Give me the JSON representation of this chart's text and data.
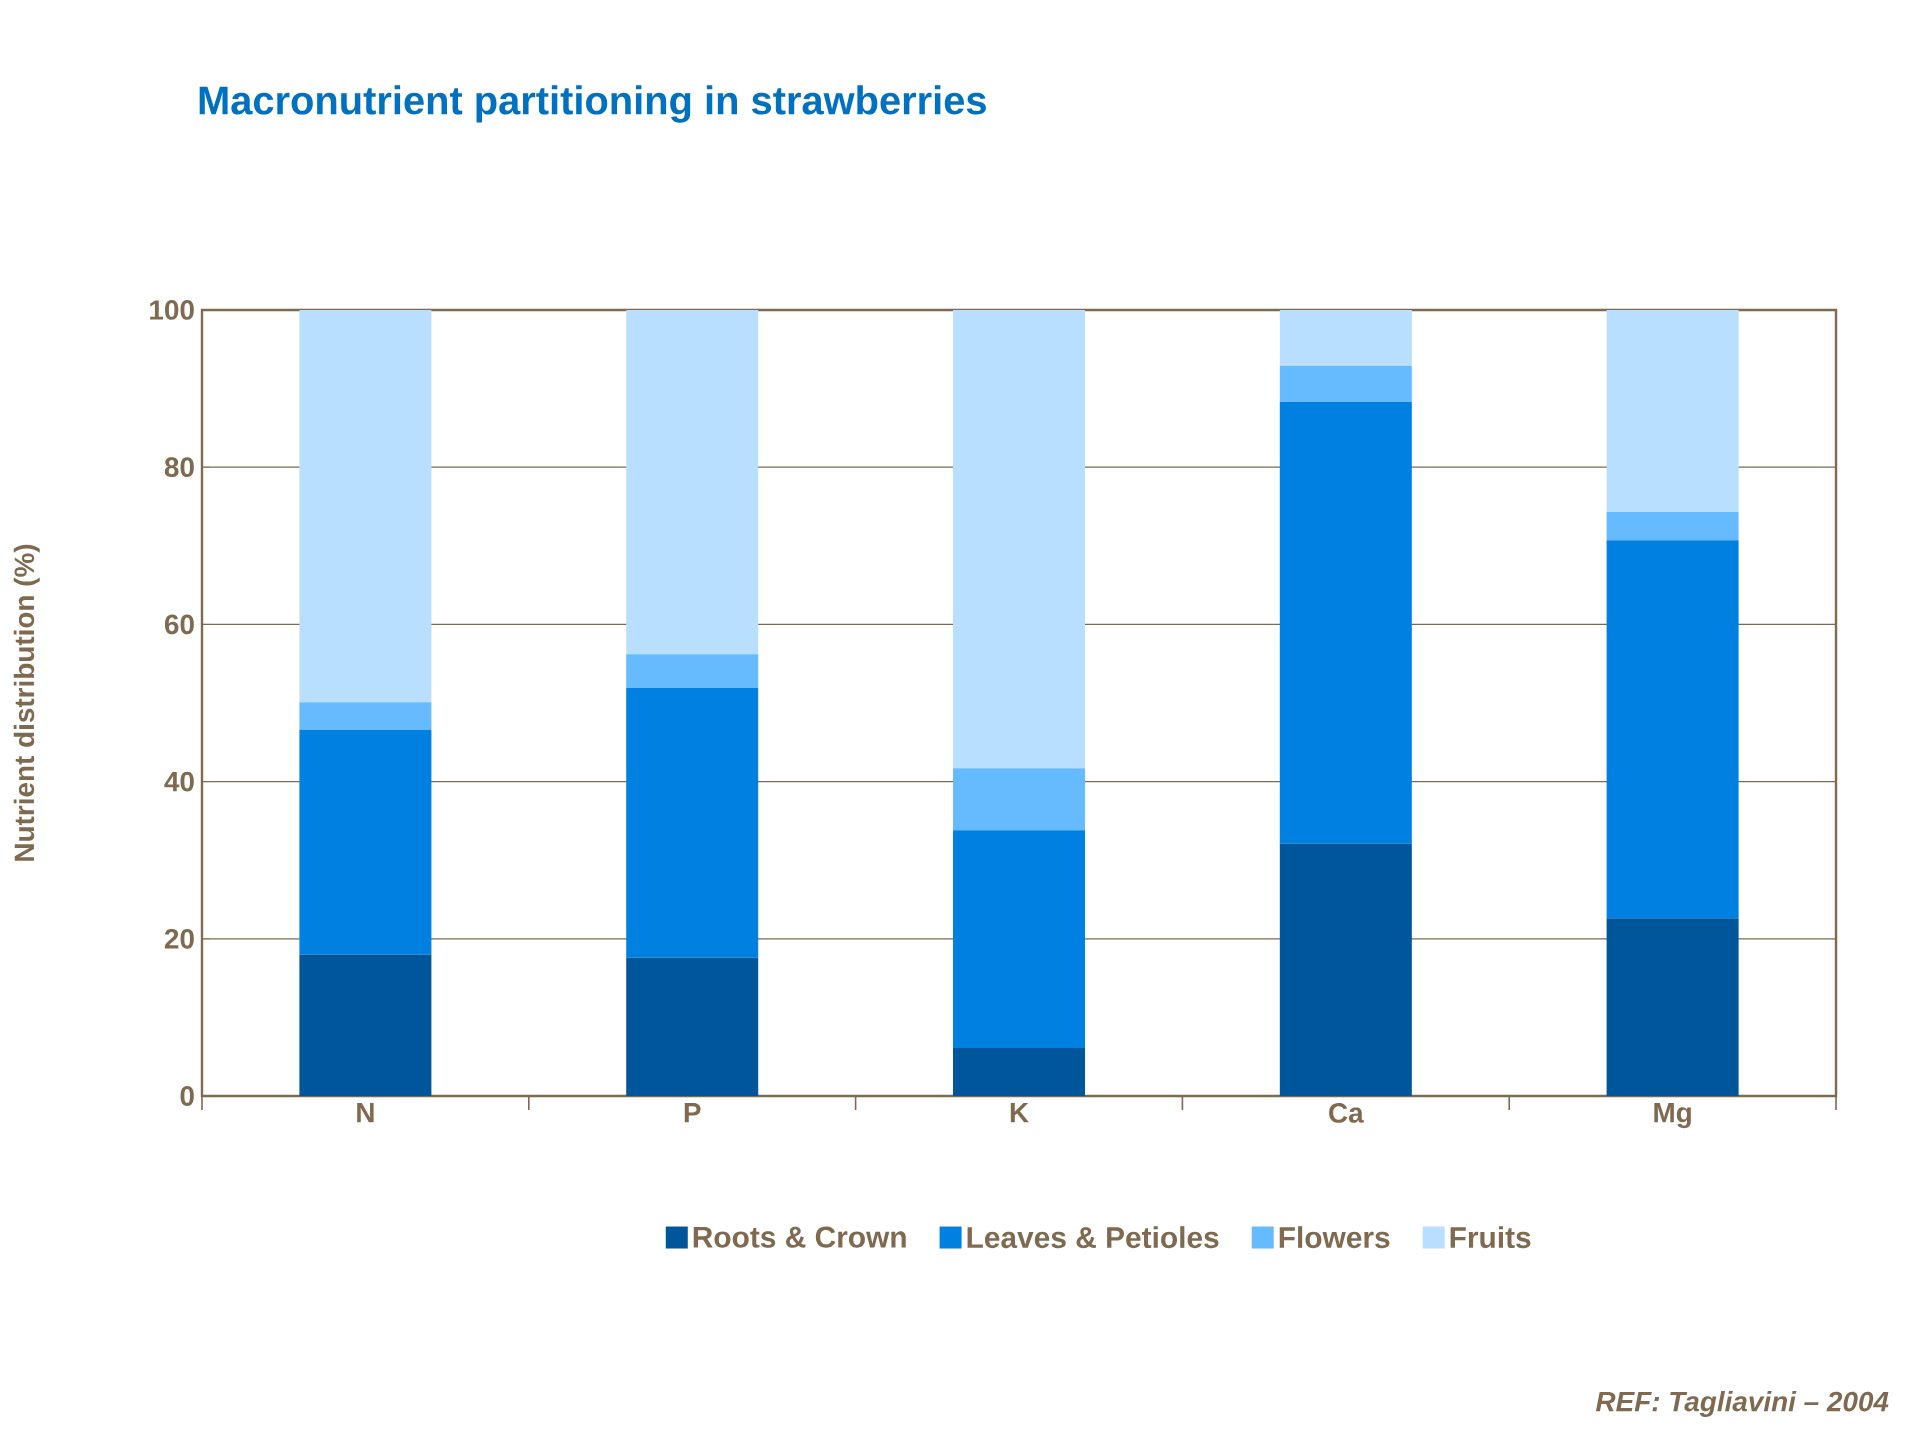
{
  "chart_data": {
    "type": "bar",
    "title": "Macronutrient partitioning in strawberries",
    "ylabel": "Nutrient distribution (%)",
    "categories": [
      "N",
      "P",
      "K",
      "Ca",
      "Mg"
    ],
    "stacked": true,
    "series": [
      {
        "name": "Roots & Crown",
        "color": "#00569a",
        "values": [
          18.0,
          17.6,
          6.1,
          32.1,
          22.6
        ]
      },
      {
        "name": "Leaves & Petioles",
        "color": "#0080e0",
        "values": [
          28.6,
          34.3,
          27.7,
          56.2,
          48.1
        ]
      },
      {
        "name": "Flowers",
        "color": "#66bbff",
        "values": [
          3.5,
          4.3,
          7.9,
          4.6,
          3.6
        ]
      },
      {
        "name": "Fruits",
        "color": "#b8dfff",
        "values": [
          49.9,
          43.8,
          58.3,
          7.1,
          25.7
        ]
      }
    ],
    "ylim": [
      0,
      100
    ],
    "yticks": [
      0,
      20,
      40,
      60,
      80,
      100
    ],
    "grid": "y",
    "legend": "bottom",
    "annotations": [
      "*REF: Tagliavini – 2004*"
    ]
  }
}
